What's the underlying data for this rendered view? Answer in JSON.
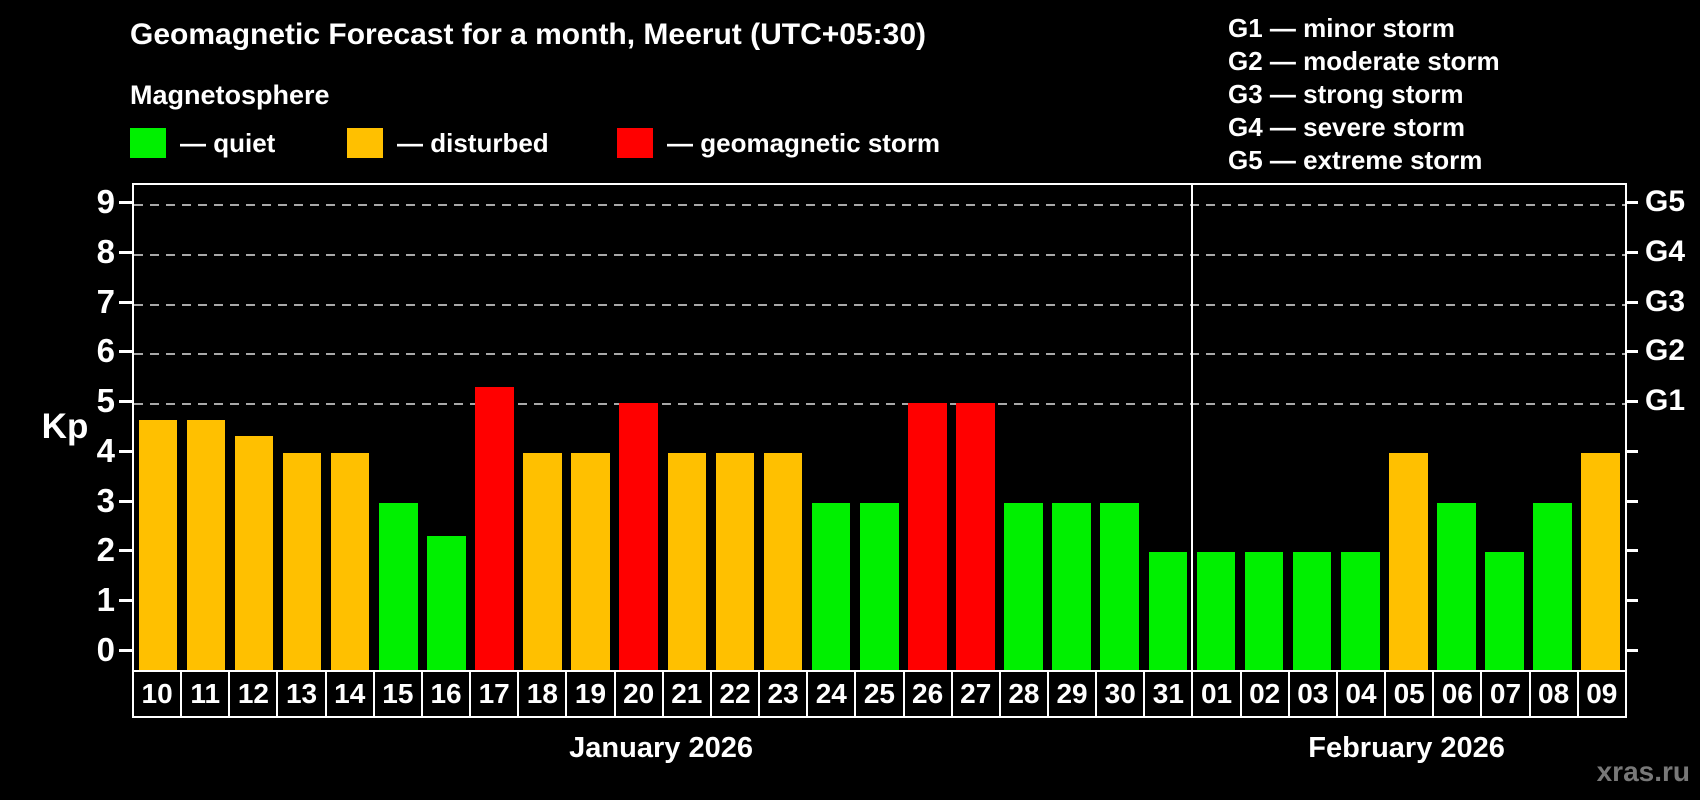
{
  "title": "Geomagnetic Forecast for a month, Meerut (UTC+05:30)",
  "subtitle": "Magnetosphere",
  "ylabel": "Kp",
  "watermark": "xras.ru",
  "legend": [
    {
      "key": "quiet",
      "label": "— quiet",
      "color": "#00f000",
      "x": 130
    },
    {
      "key": "disturbed",
      "label": "— disturbed",
      "color": "#ffc000",
      "x": 347
    },
    {
      "key": "storm",
      "label": "— geomagnetic storm",
      "color": "#ff0000",
      "x": 617
    }
  ],
  "g_legend": [
    "G1 — minor storm",
    "G2 — moderate storm",
    "G3 — strong storm",
    "G4 — severe storm",
    "G5 — extreme storm"
  ],
  "chart_data": {
    "type": "bar",
    "title": "Geomagnetic Forecast for a month, Meerut (UTC+05:30)",
    "xlabel": "",
    "ylabel": "Kp",
    "ylim": [
      0,
      9
    ],
    "y_ticks": [
      0,
      1,
      2,
      3,
      4,
      5,
      6,
      7,
      8,
      9
    ],
    "gridlines_at": [
      5,
      6,
      7,
      8,
      9
    ],
    "grid": true,
    "legend_position": "top",
    "right_axis_labels": [
      {
        "value": 5,
        "label": "G1"
      },
      {
        "value": 6,
        "label": "G2"
      },
      {
        "value": 7,
        "label": "G3"
      },
      {
        "value": 8,
        "label": "G4"
      },
      {
        "value": 9,
        "label": "G5"
      }
    ],
    "status_colors": {
      "quiet": "#00f000",
      "disturbed": "#ffc000",
      "storm": "#ff0000"
    },
    "months": [
      {
        "label": "January 2026",
        "days": 22
      },
      {
        "label": "February 2026",
        "days": 9
      }
    ],
    "bars": [
      {
        "day": "10",
        "value": 4.67,
        "status": "disturbed"
      },
      {
        "day": "11",
        "value": 4.67,
        "status": "disturbed"
      },
      {
        "day": "12",
        "value": 4.33,
        "status": "disturbed"
      },
      {
        "day": "13",
        "value": 4.0,
        "status": "disturbed"
      },
      {
        "day": "14",
        "value": 4.0,
        "status": "disturbed"
      },
      {
        "day": "15",
        "value": 3.0,
        "status": "quiet"
      },
      {
        "day": "16",
        "value": 2.33,
        "status": "quiet"
      },
      {
        "day": "17",
        "value": 5.33,
        "status": "storm"
      },
      {
        "day": "18",
        "value": 4.0,
        "status": "disturbed"
      },
      {
        "day": "19",
        "value": 4.0,
        "status": "disturbed"
      },
      {
        "day": "20",
        "value": 5.0,
        "status": "storm"
      },
      {
        "day": "21",
        "value": 4.0,
        "status": "disturbed"
      },
      {
        "day": "22",
        "value": 4.0,
        "status": "disturbed"
      },
      {
        "day": "23",
        "value": 4.0,
        "status": "disturbed"
      },
      {
        "day": "24",
        "value": 3.0,
        "status": "quiet"
      },
      {
        "day": "25",
        "value": 3.0,
        "status": "quiet"
      },
      {
        "day": "26",
        "value": 5.0,
        "status": "storm"
      },
      {
        "day": "27",
        "value": 5.0,
        "status": "storm"
      },
      {
        "day": "28",
        "value": 3.0,
        "status": "quiet"
      },
      {
        "day": "29",
        "value": 3.0,
        "status": "quiet"
      },
      {
        "day": "30",
        "value": 3.0,
        "status": "quiet"
      },
      {
        "day": "31",
        "value": 2.0,
        "status": "quiet"
      },
      {
        "day": "01",
        "value": 2.0,
        "status": "quiet"
      },
      {
        "day": "02",
        "value": 2.0,
        "status": "quiet"
      },
      {
        "day": "03",
        "value": 2.0,
        "status": "quiet"
      },
      {
        "day": "04",
        "value": 2.0,
        "status": "quiet"
      },
      {
        "day": "05",
        "value": 4.0,
        "status": "disturbed"
      },
      {
        "day": "06",
        "value": 3.0,
        "status": "quiet"
      },
      {
        "day": "07",
        "value": 2.0,
        "status": "quiet"
      },
      {
        "day": "08",
        "value": 3.0,
        "status": "quiet"
      },
      {
        "day": "09",
        "value": 4.0,
        "status": "disturbed"
      }
    ]
  }
}
